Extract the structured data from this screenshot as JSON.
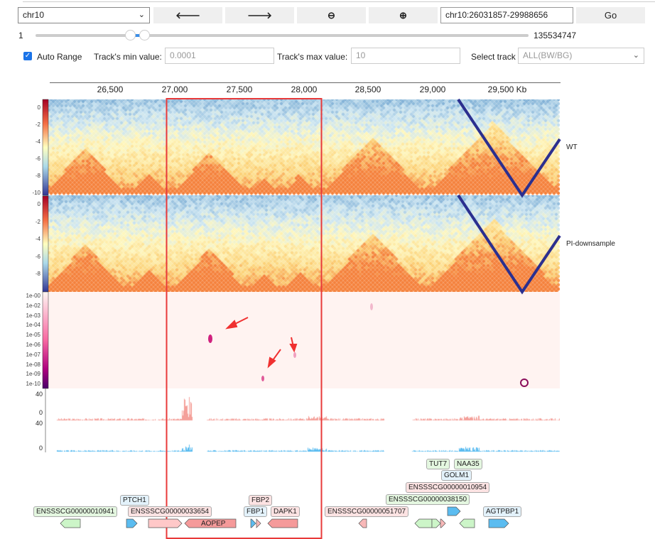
{
  "toolbar": {
    "chromosome": "chr10",
    "back_icon": "arrow-left-icon",
    "forward_icon": "arrow-right-icon",
    "zoom_out_icon": "zoom-out-icon",
    "zoom_in_icon": "zoom-in-icon",
    "back": "🡐",
    "forward": "🡒",
    "zoom_out": "⊖",
    "zoom_in": "⊕",
    "locus": "chr10:26031857-29988656",
    "go": "Go"
  },
  "slider": {
    "min": "1",
    "max": "135534747",
    "range_start_fraction": 0.192,
    "range_end_fraction": 0.221
  },
  "options": {
    "auto_range": "Auto Range",
    "auto_range_checked": true,
    "min_label": "Track's min value:",
    "min_placeholder": "0.0001",
    "max_label": "Track's max value:",
    "max_placeholder": "10",
    "select_track_label": "Select track",
    "select_track_value": "ALL(BW/BG)"
  },
  "axis": {
    "ticks": [
      "26,500",
      "27,000",
      "27,500",
      "28,000",
      "28,500",
      "29,000",
      "29,500 Kb"
    ]
  },
  "tracks": {
    "hic1": {
      "name": "WT",
      "scale": [
        "0",
        "-2",
        "-4",
        "-6",
        "-8",
        "-10"
      ]
    },
    "hic2": {
      "name": "PI-downsample",
      "scale": [
        "0",
        "-2",
        "-4",
        "-6",
        "-8"
      ]
    },
    "pvalue": {
      "scale": [
        "1e-00",
        "1e-02",
        "1e-03",
        "1e-04",
        "1e-05",
        "1e-06",
        "1e-07",
        "1e-08",
        "1e-09",
        "1e-10"
      ]
    },
    "bw1": {
      "max": "40",
      "min": "0",
      "color": "#f4a09a"
    },
    "bw2": {
      "max": "40",
      "min": "0",
      "color": "#5bbcf0"
    }
  },
  "highlight_color": "#e83a3a",
  "genes": [
    {
      "name": "ENSSSCG00000010941",
      "color": "green"
    },
    {
      "name": "PTCH1",
      "color": "blue"
    },
    {
      "name": "ENSSSCG00000033654",
      "color": "red"
    },
    {
      "name": "AOPEP",
      "color": "red"
    },
    {
      "name": "FBP2",
      "color": "red"
    },
    {
      "name": "FBP1",
      "color": "blue"
    },
    {
      "name": "DAPK1",
      "color": "red"
    },
    {
      "name": "ENSSSCG00000051707",
      "color": "red"
    },
    {
      "name": "TUT7",
      "color": "green"
    },
    {
      "name": "NAA35",
      "color": "green"
    },
    {
      "name": "GOLM1",
      "color": "blue"
    },
    {
      "name": "ENSSSCG00000010954",
      "color": "red"
    },
    {
      "name": "ENSSSCG00000038150",
      "color": "green"
    },
    {
      "name": "AGTPBP1",
      "color": "blue"
    }
  ]
}
